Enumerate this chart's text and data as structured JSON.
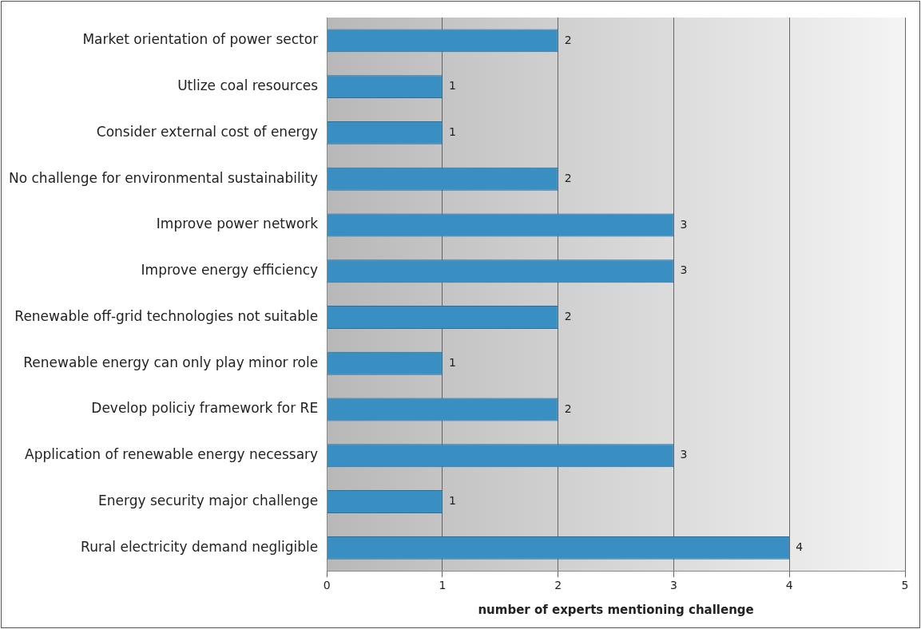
{
  "chart_data": {
    "type": "bar",
    "orientation": "horizontal",
    "xlabel": "number of experts mentioning challenge",
    "categories": [
      "Market orientation of power sector",
      "Utlize coal resources",
      "Consider external cost of energy",
      "No challenge for environmental sustainability",
      "Improve power network",
      "Improve energy efficiency",
      "Renewable off-grid technologies not suitable",
      "Renewable energy can only play minor role",
      "Develop policiy framework for RE",
      "Application of renewable energy necessary",
      "Energy security major challenge",
      "Rural electricity demand negligible"
    ],
    "values": [
      2,
      1,
      1,
      2,
      3,
      3,
      2,
      1,
      2,
      3,
      1,
      4
    ],
    "color": "#3a8fc2",
    "xlim": [
      0,
      5
    ],
    "xticks": [
      0,
      1,
      2,
      3,
      4,
      5
    ],
    "grid": "x",
    "data_labels": true
  }
}
